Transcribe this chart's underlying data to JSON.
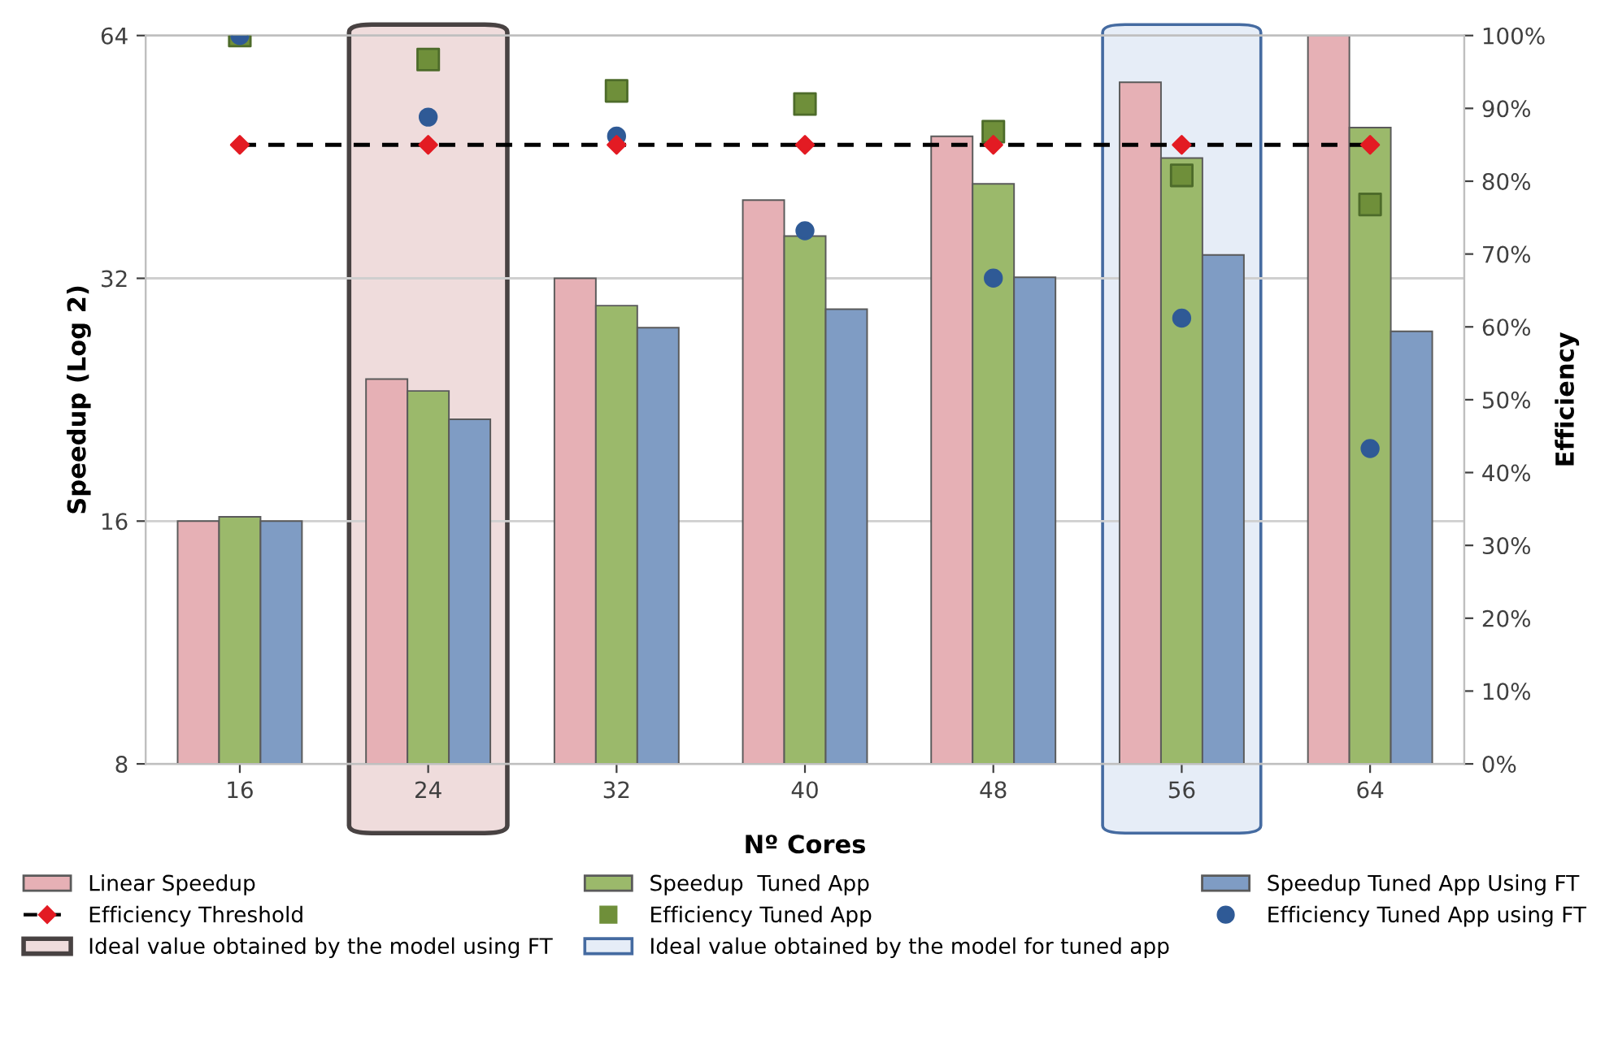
{
  "chart_data": {
    "type": "bar",
    "xlabel": "Nº Cores",
    "ylabel": "Speedup (Log 2)",
    "y2label": "Efficiency",
    "categories": [
      "16",
      "24",
      "32",
      "40",
      "48",
      "56",
      "64"
    ],
    "series": [
      {
        "name": "Linear Speedup",
        "color": "#e6b0b5",
        "values": [
          16,
          24,
          32,
          40,
          48,
          56,
          64
        ]
      },
      {
        "name": "Speedup  Tuned App",
        "color": "#9bb96b",
        "values": [
          16.2,
          23.2,
          29.6,
          36.1,
          41.9,
          45.1,
          49.2
        ]
      },
      {
        "name": "Speedup Tuned App Using FT",
        "color": "#7f9cc4",
        "values": [
          16,
          21.4,
          27.8,
          29.3,
          32.1,
          34.2,
          27.5
        ]
      },
      {
        "name": "Efficiency Threshold",
        "type": "line",
        "axis": "y2",
        "color": "#000000",
        "colors": [
          "#e31b23",
          "#e31b23",
          "#e31b23",
          "#e31b23",
          "#e31b23",
          "#e31b23",
          "#e31b23"
        ],
        "marker": "diamond",
        "line_style": "dashed",
        "values": [
          85,
          85,
          85,
          85,
          85,
          85,
          85
        ]
      },
      {
        "name": "Efficiency Tuned App",
        "type": "scatter",
        "axis": "y2",
        "color": "#6f8f3a",
        "marker": "square",
        "values": [
          100,
          96.7,
          92.4,
          90.6,
          86.8,
          80.8,
          76.8
        ]
      },
      {
        "name": "Efficiency Tuned App using FT",
        "type": "scatter",
        "axis": "y2",
        "color": "#2f5a96",
        "marker": "circle",
        "values": [
          100,
          88.8,
          86.2,
          73.2,
          66.7,
          61.2,
          43.3
        ]
      }
    ],
    "log": "y",
    "ylim": [
      8,
      64
    ],
    "yticks": [
      8,
      16,
      32,
      64
    ],
    "y2lim": [
      0,
      100
    ],
    "y2ticks": [
      {
        "value": 0,
        "label": "0%"
      },
      {
        "value": 10,
        "label": "10%"
      },
      {
        "value": 20,
        "label": "20%"
      },
      {
        "value": 30,
        "label": "30%"
      },
      {
        "value": 40,
        "label": "40%"
      },
      {
        "value": 50,
        "label": "50%"
      },
      {
        "value": 60,
        "label": "60%"
      },
      {
        "value": 70,
        "label": "70%"
      },
      {
        "value": 80,
        "label": "80%"
      },
      {
        "value": 90,
        "label": "90%"
      },
      {
        "value": 100,
        "label": "100%"
      }
    ],
    "bands": [
      {
        "axis": "x",
        "from": "24",
        "to": "24",
        "label": "Ideal value obtained by the model using FT",
        "color": "#efdcdc"
      },
      {
        "axis": "x",
        "from": "56",
        "to": "56",
        "label": "Ideal value obtained by the model for tuned app",
        "color": "#e6edf7"
      }
    ],
    "grid": "y",
    "legend": "bottom"
  }
}
